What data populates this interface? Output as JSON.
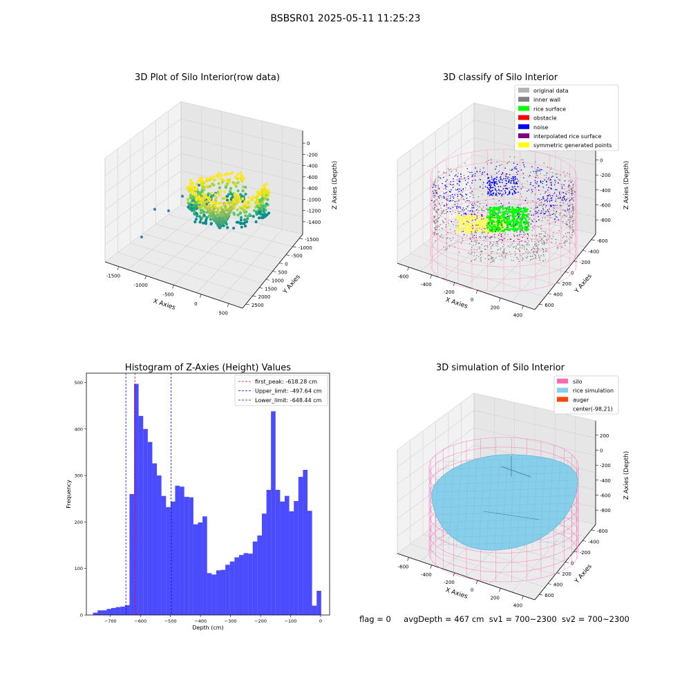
{
  "suptitle": "BSBSR01 2025-05-11 11:25:23",
  "panels": {
    "raw": {
      "title": "3D Plot of Silo Interior(row data)",
      "xlabel": "X Axies",
      "ylabel": "Y Axies",
      "zlabel": "Z Axies (Depth)",
      "xticks": [
        "-1500",
        "-1000",
        "-500",
        "0",
        "500"
      ],
      "yticks": [
        "2500",
        "2000",
        "1500",
        "1000",
        "500",
        "0",
        "-500",
        "-1000",
        "-1500"
      ],
      "zticks": [
        "0",
        "-200",
        "-400",
        "-600",
        "-800",
        "-1000",
        "-1200",
        "-1400"
      ]
    },
    "classify": {
      "title": "3D classify of Silo Interior",
      "xlabel": "X Axies",
      "ylabel": "Y Axies",
      "zlabel": "Z Axies (Depth)",
      "xticks": [
        "-600",
        "-400",
        "-200",
        "0",
        "200",
        "400"
      ],
      "yticks": [
        "600",
        "400",
        "200",
        "0",
        "-200",
        "-400",
        "-600"
      ],
      "zticks": [
        "200",
        "0",
        "-200",
        "-400",
        "-600",
        "-800"
      ],
      "legend": [
        {
          "label": "original data",
          "color": "#b4b4b4"
        },
        {
          "label": "inner wall",
          "color": "#808080"
        },
        {
          "label": "rice surface",
          "color": "#00ff00"
        },
        {
          "label": "obstacle",
          "color": "#ff0000"
        },
        {
          "label": "noise",
          "color": "#0000ff"
        },
        {
          "label": "interpolated rice surface",
          "color": "#800080"
        },
        {
          "label": "symmetric generated points",
          "color": "#ffff00"
        }
      ]
    },
    "simulation": {
      "title": "3D simulation of Silo Interior",
      "xlabel": "X Axies",
      "ylabel": "Y Axies",
      "zlabel": "Z Axies (Depth)",
      "xticks": [
        "-600",
        "-400",
        "-200",
        "0",
        "200",
        "400"
      ],
      "yticks": [
        "600",
        "400",
        "200",
        "0",
        "-200",
        "-400",
        "-600"
      ],
      "zticks": [
        "200",
        "0",
        "-200",
        "-400",
        "-600",
        "-800"
      ],
      "legend": [
        {
          "label": "silo",
          "color": "#ff69b4"
        },
        {
          "label": "rice simulation",
          "color": "#87ceeb"
        },
        {
          "label": "auger",
          "color": "#ff4500"
        },
        {
          "label": "center(-98,21)",
          "color": ""
        }
      ]
    }
  },
  "chart_data": {
    "type": "bar",
    "title": "Histogram of Z-Axies (Height) Values",
    "xlabel": "Depth (cm)",
    "ylabel": "Frequency",
    "xlim": [
      -780,
      30
    ],
    "ylim": [
      0,
      520
    ],
    "xticks": [
      -700,
      -600,
      -500,
      -400,
      -300,
      -200,
      -100,
      0
    ],
    "yticks": [
      0,
      100,
      200,
      300,
      400,
      500
    ],
    "bar_color": "#0000ff",
    "bins": {
      "start": -758,
      "width": 15.2,
      "counts": [
        5,
        10,
        10,
        13,
        15,
        17,
        18,
        21,
        260,
        497,
        428,
        400,
        372,
        326,
        300,
        256,
        232,
        244,
        278,
        276,
        254,
        253,
        195,
        199,
        212,
        90,
        87,
        96,
        97,
        108,
        115,
        124,
        129,
        133,
        132,
        158,
        171,
        218,
        269,
        438,
        269,
        244,
        256,
        223,
        245,
        297,
        312,
        224,
        20,
        52
      ]
    },
    "lines": [
      {
        "label": "first_peak: -618.28 cm",
        "x": -618.28,
        "color": "#ff0000"
      },
      {
        "label": "Upper_limit: -497.64 cm",
        "x": -497.64,
        "color": "#0000ff"
      },
      {
        "label": "Lower_limit: -648.44 cm",
        "x": -648.44,
        "color": "#0000ff"
      }
    ],
    "legend_loc": "upper right"
  },
  "footer": {
    "flag": "flag = 0",
    "avg": "avgDepth = 467 cm",
    "sv1": "sv1 = 700~2300",
    "sv2": "sv2 = 700~2300"
  }
}
